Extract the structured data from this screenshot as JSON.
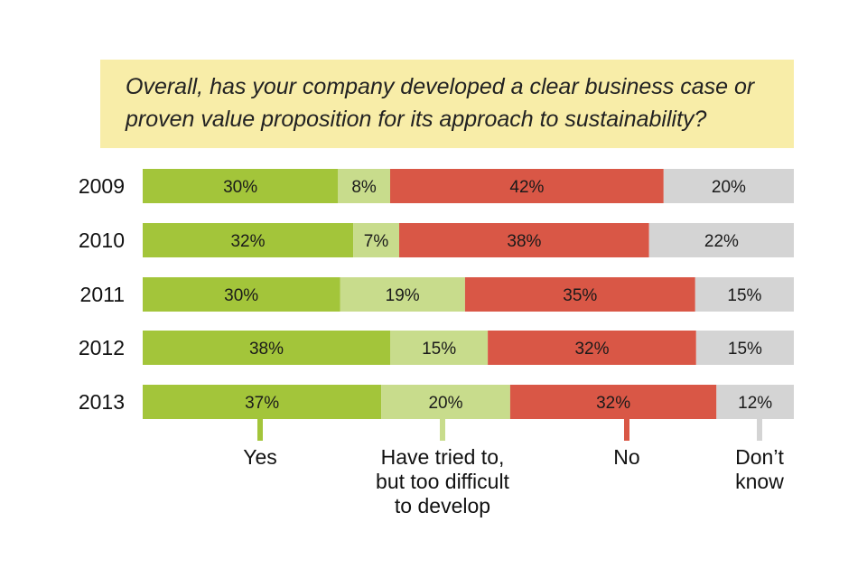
{
  "chart_data": {
    "type": "bar",
    "orientation": "horizontal",
    "stacked": true,
    "percent_scale": true,
    "title": "Overall, has your company developed a clear business case or proven value proposition for its approach to sustainability?",
    "title_lines": [
      "Overall, has your company developed a clear business case or",
      "proven value proposition for its approach to sustainability?"
    ],
    "categories": [
      "2009",
      "2010",
      "2011",
      "2012",
      "2013"
    ],
    "series": [
      {
        "name": "Yes",
        "name_lines": [
          "Yes"
        ],
        "color": "#a3c53a",
        "values": [
          30,
          32,
          30,
          38,
          37
        ],
        "labels": [
          "30%",
          "32%",
          "30%",
          "38%",
          "37%"
        ]
      },
      {
        "name": "Have tried to, but too difficult to develop",
        "name_lines": [
          "Have tried to,",
          "but too difficult",
          "to develop"
        ],
        "color": "#c8dc8c",
        "values": [
          8,
          7,
          19,
          15,
          20
        ],
        "labels": [
          "8%",
          "7%",
          "19%",
          "15%",
          "20%"
        ]
      },
      {
        "name": "No",
        "name_lines": [
          "No"
        ],
        "color": "#d95746",
        "values": [
          42,
          38,
          35,
          32,
          32
        ],
        "labels": [
          "42%",
          "38%",
          "35%",
          "32%",
          "32%"
        ]
      },
      {
        "name": "Don’t know",
        "name_lines": [
          "Don’t",
          "know"
        ],
        "color": "#d4d4d4",
        "values": [
          20,
          22,
          15,
          15,
          12
        ],
        "labels": [
          "20%",
          "22%",
          "15%",
          "15%",
          "12%"
        ]
      }
    ],
    "legend_position": "bottom",
    "grid": false
  }
}
